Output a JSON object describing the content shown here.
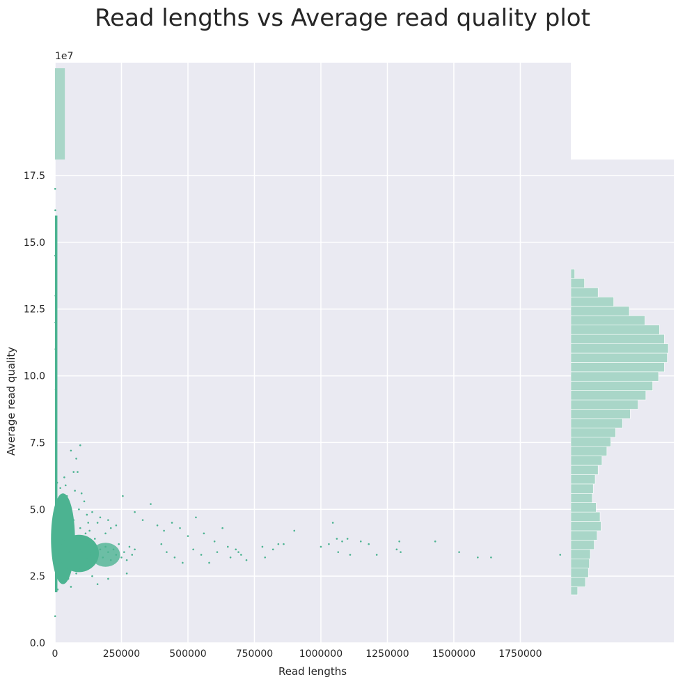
{
  "chart_data": {
    "type": "scatter",
    "title": "Read lengths vs Average read quality plot",
    "xlabel": "Read lengths",
    "ylabel": "Average read quality",
    "x_offset_text": "1e7",
    "xlim": [
      0,
      1940000
    ],
    "ylim": [
      0,
      18.1
    ],
    "xticks": [
      0,
      250000,
      500000,
      750000,
      1000000,
      1250000,
      1500000,
      1750000
    ],
    "xtick_labels": [
      "0",
      "250000",
      "500000",
      "750000",
      "1000000",
      "1250000",
      "1500000",
      "1750000"
    ],
    "yticks": [
      0,
      2.5,
      5,
      7.5,
      10,
      12.5,
      15,
      17.5
    ],
    "ytick_labels": [
      "0.0",
      "2.5",
      "5.0",
      "7.5",
      "10.0",
      "12.5",
      "15.0",
      "17.5"
    ],
    "grid": true,
    "colors": {
      "background": "#EAEAF2",
      "grid": "#FFFFFF",
      "point": "#4CB391",
      "hist": "#A9D6C8"
    },
    "series": [
      {
        "points": [
          [
            900,
            14.5
          ],
          [
            1200,
            16.2
          ],
          [
            700,
            17.0
          ],
          [
            1500,
            12.0
          ],
          [
            2000,
            11.0
          ],
          [
            600,
            1.0
          ],
          [
            3000,
            8.0
          ],
          [
            2500,
            9.5
          ],
          [
            4000,
            10.5
          ],
          [
            1800,
            13.0
          ],
          [
            5000,
            6.5
          ],
          [
            8000,
            6.0
          ],
          [
            20000,
            5.8
          ],
          [
            35000,
            6.2
          ],
          [
            60000,
            7.2
          ],
          [
            80000,
            6.9
          ],
          [
            95000,
            7.4
          ],
          [
            70000,
            6.4
          ],
          [
            45000,
            5.5
          ],
          [
            30000,
            4.8
          ],
          [
            15000,
            4.2
          ],
          [
            25000,
            3.9
          ],
          [
            40000,
            3.6
          ],
          [
            55000,
            3.4
          ],
          [
            65000,
            3.2
          ],
          [
            75000,
            3.5
          ],
          [
            85000,
            3.3
          ],
          [
            100000,
            3.4
          ],
          [
            110000,
            3.6
          ],
          [
            120000,
            3.2
          ],
          [
            130000,
            3.7
          ],
          [
            140000,
            3.1
          ],
          [
            150000,
            3.9
          ],
          [
            160000,
            3.3
          ],
          [
            170000,
            3.5
          ],
          [
            180000,
            3.2
          ],
          [
            190000,
            3.6
          ],
          [
            200000,
            3.4
          ],
          [
            210000,
            3.1
          ],
          [
            220000,
            3.5
          ],
          [
            230000,
            3.3
          ],
          [
            240000,
            3.7
          ],
          [
            250000,
            3.2
          ],
          [
            260000,
            3.4
          ],
          [
            270000,
            3.1
          ],
          [
            280000,
            3.6
          ],
          [
            290000,
            3.3
          ],
          [
            300000,
            3.5
          ],
          [
            120000,
            4.8
          ],
          [
            160000,
            4.5
          ],
          [
            200000,
            4.6
          ],
          [
            255000,
            5.5
          ],
          [
            300000,
            4.9
          ],
          [
            330000,
            4.6
          ],
          [
            360000,
            5.2
          ],
          [
            385000,
            4.4
          ],
          [
            410000,
            4.2
          ],
          [
            440000,
            4.5
          ],
          [
            470000,
            4.3
          ],
          [
            500000,
            4.0
          ],
          [
            530000,
            4.7
          ],
          [
            560000,
            4.1
          ],
          [
            600000,
            3.8
          ],
          [
            630000,
            4.3
          ],
          [
            650000,
            3.6
          ],
          [
            680000,
            3.5
          ],
          [
            700000,
            3.3
          ],
          [
            720000,
            3.1
          ],
          [
            400000,
            3.7
          ],
          [
            420000,
            3.4
          ],
          [
            450000,
            3.2
          ],
          [
            480000,
            3.0
          ],
          [
            520000,
            3.5
          ],
          [
            550000,
            3.3
          ],
          [
            580000,
            3.0
          ],
          [
            610000,
            3.4
          ],
          [
            660000,
            3.2
          ],
          [
            690000,
            3.4
          ],
          [
            780000,
            3.6
          ],
          [
            790000,
            3.2
          ],
          [
            820000,
            3.5
          ],
          [
            840000,
            3.7
          ],
          [
            860000,
            3.7
          ],
          [
            900000,
            4.2
          ],
          [
            1000000,
            3.6
          ],
          [
            1030000,
            3.7
          ],
          [
            1045000,
            4.5
          ],
          [
            1060000,
            3.9
          ],
          [
            1080000,
            3.8
          ],
          [
            1065000,
            3.4
          ],
          [
            1100000,
            3.9
          ],
          [
            1110000,
            3.3
          ],
          [
            1150000,
            3.8
          ],
          [
            1180000,
            3.7
          ],
          [
            1210000,
            3.3
          ],
          [
            1285000,
            3.5
          ],
          [
            1300000,
            3.4
          ],
          [
            1295000,
            3.8
          ],
          [
            1430000,
            3.8
          ],
          [
            1520000,
            3.4
          ],
          [
            1590000,
            3.2
          ],
          [
            1640000,
            3.2
          ],
          [
            1900000,
            3.3
          ],
          [
            5000,
            2.2
          ],
          [
            10000,
            2.0
          ],
          [
            30000,
            2.3
          ],
          [
            50000,
            2.4
          ],
          [
            80000,
            2.6
          ],
          [
            100000,
            2.9
          ],
          [
            140000,
            2.5
          ],
          [
            160000,
            2.2
          ],
          [
            200000,
            2.4
          ],
          [
            270000,
            2.6
          ],
          [
            90000,
            2.8
          ],
          [
            60000,
            2.1
          ],
          [
            40000,
            5.9
          ],
          [
            50000,
            5.2
          ],
          [
            70000,
            4.6
          ],
          [
            90000,
            5.0
          ],
          [
            110000,
            5.3
          ],
          [
            130000,
            4.2
          ],
          [
            140000,
            4.9
          ],
          [
            170000,
            4.7
          ],
          [
            190000,
            4.1
          ],
          [
            210000,
            4.3
          ],
          [
            230000,
            4.4
          ],
          [
            100000,
            5.6
          ],
          [
            85000,
            6.4
          ],
          [
            75000,
            5.7
          ],
          [
            95000,
            4.3
          ],
          [
            105000,
            3.9
          ],
          [
            115000,
            4.1
          ],
          [
            125000,
            4.5
          ]
        ]
      }
    ],
    "top_histogram": {
      "bins": [
        [
          0,
          37000
        ]
      ],
      "counts": [
        1
      ]
    },
    "right_histogram": {
      "edges": [
        1.8,
        2.1,
        2.45,
        2.8,
        3.15,
        3.5,
        3.85,
        4.2,
        4.55,
        4.9,
        5.25,
        5.6,
        5.95,
        6.3,
        6.65,
        7.0,
        7.35,
        7.7,
        8.05,
        8.4,
        8.75,
        9.1,
        9.45,
        9.8,
        10.15,
        10.5,
        10.85,
        11.2,
        11.55,
        11.9,
        12.25,
        12.6,
        12.95,
        13.3,
        13.65,
        14.0
      ],
      "counts": [
        0.07,
        0.15,
        0.18,
        0.19,
        0.2,
        0.24,
        0.27,
        0.31,
        0.3,
        0.26,
        0.22,
        0.23,
        0.25,
        0.28,
        0.32,
        0.37,
        0.41,
        0.46,
        0.53,
        0.61,
        0.69,
        0.77,
        0.84,
        0.9,
        0.96,
        0.99,
        1.0,
        0.96,
        0.91,
        0.76,
        0.6,
        0.44,
        0.28,
        0.14,
        0.04
      ]
    }
  }
}
